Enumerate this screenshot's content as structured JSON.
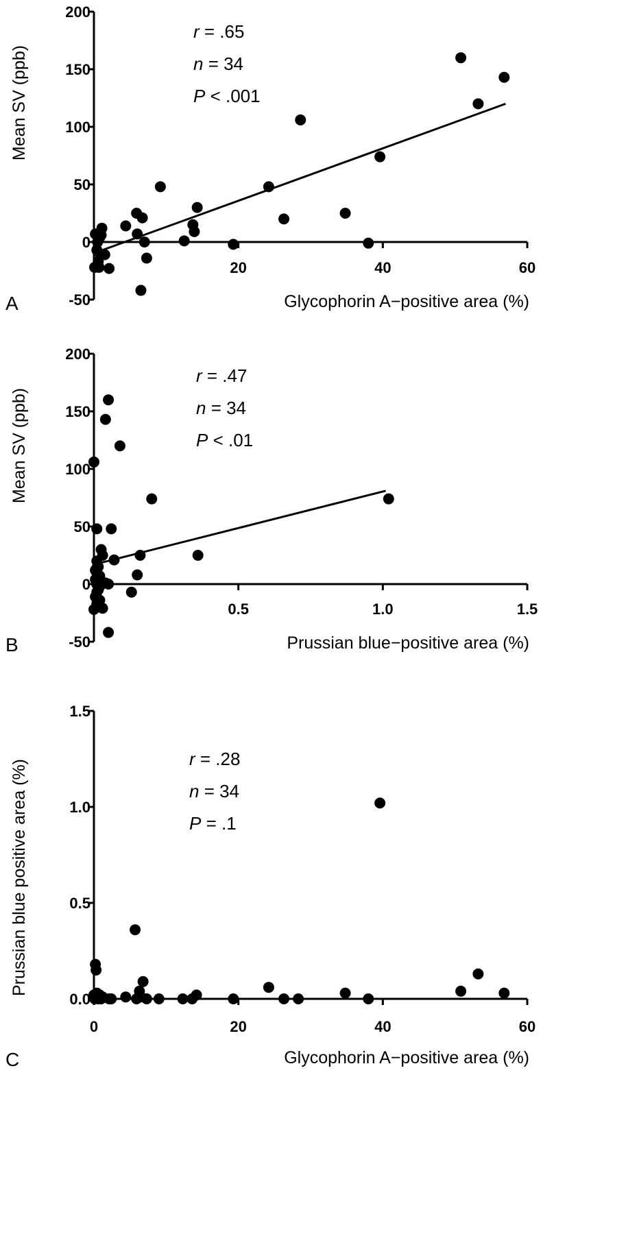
{
  "chart_data": [
    {
      "type": "scatter",
      "panel_label": "A",
      "xlabel": "Glycophorin A−positive area (%)",
      "ylabel": "Mean SV (ppb)",
      "xlim": [
        0,
        60
      ],
      "ylim": [
        -50,
        200
      ],
      "xticks": [
        20,
        40,
        60
      ],
      "xtick_labels": [
        "20",
        "40",
        "60"
      ],
      "yticks": [
        -50,
        0,
        50,
        100,
        150,
        200
      ],
      "ytick_labels": [
        "-50",
        "0",
        "50",
        "100",
        "150",
        "200"
      ],
      "stats": [
        {
          "sym": "r",
          "rest": " = .65"
        },
        {
          "sym": "n",
          "rest": " = 34"
        },
        {
          "sym": "P",
          "rest": " < .001"
        }
      ],
      "fit_line": {
        "x": [
          0.3,
          57
        ],
        "y": [
          -9,
          120
        ]
      },
      "x": [
        0.1,
        0.2,
        0.4,
        0.5,
        0.6,
        0.7,
        0.8,
        1.0,
        1.1,
        2.1,
        4.4,
        5.9,
        6.0,
        6.5,
        6.7,
        7.0,
        7.3,
        9.2,
        12.5,
        13.7,
        13.9,
        14.3,
        19.3,
        24.2,
        26.3,
        28.6,
        34.8,
        38.0,
        39.6,
        50.8,
        53.2,
        56.8,
        1.5,
        0.9
      ],
      "y": [
        -22,
        7,
        -7,
        0,
        -17,
        -22,
        4,
        6,
        12,
        -23,
        14,
        25,
        7,
        -42,
        21,
        0,
        -14,
        48,
        1,
        15,
        9,
        30,
        -2,
        48,
        20,
        106,
        25,
        -1,
        74,
        160,
        120,
        143,
        -11,
        -11
      ]
    },
    {
      "type": "scatter",
      "panel_label": "B",
      "xlabel": "Prussian blue−positive area (%)",
      "ylabel": "Mean SV (ppb)",
      "xlim": [
        0,
        1.5
      ],
      "ylim": [
        -50,
        200
      ],
      "xticks": [
        0.5,
        1.0,
        1.5
      ],
      "xtick_labels": [
        "0.5",
        "1.0",
        "1.5"
      ],
      "yticks": [
        -50,
        0,
        50,
        100,
        150,
        200
      ],
      "ytick_labels": [
        "-50",
        "0",
        "50",
        "100",
        "150",
        "200"
      ],
      "stats": [
        {
          "sym": "r",
          "rest": " = .47"
        },
        {
          "sym": "n",
          "rest": " = 34"
        },
        {
          "sym": "P",
          "rest": " < .01"
        }
      ],
      "fit_line": {
        "x": [
          0.0,
          1.01
        ],
        "y": [
          17,
          81
        ]
      },
      "x": [
        0.0,
        0.0,
        0.005,
        0.005,
        0.005,
        0.01,
        0.01,
        0.01,
        0.01,
        0.01,
        0.01,
        0.01,
        0.015,
        0.015,
        0.02,
        0.02,
        0.02,
        0.025,
        0.03,
        0.03,
        0.04,
        0.05,
        0.05,
        0.05,
        0.06,
        0.07,
        0.09,
        0.13,
        0.15,
        0.16,
        0.2,
        0.36,
        1.02,
        0.04
      ],
      "y": [
        106,
        -22,
        4,
        12,
        -11,
        48,
        0,
        10,
        -7,
        -17,
        20,
        14,
        15,
        -5,
        7,
        -14,
        -2,
        30,
        -21,
        25,
        143,
        160,
        0,
        -42,
        48,
        21,
        120,
        -7,
        8,
        25,
        74,
        25,
        74,
        1
      ]
    },
    {
      "type": "scatter",
      "panel_label": "C",
      "xlabel": "Glycophorin A−positive area (%)",
      "ylabel": "Prussian blue positive area (%)",
      "xlim": [
        0,
        60
      ],
      "ylim": [
        0,
        1.5
      ],
      "xticks": [
        0,
        20,
        40,
        60
      ],
      "xtick_labels": [
        "0",
        "20",
        "40",
        "60"
      ],
      "yticks": [
        0,
        0.5,
        1.0,
        1.5
      ],
      "ytick_labels": [
        "0.0",
        "0.5",
        "1.0",
        "1.5"
      ],
      "stats": [
        {
          "sym": "r",
          "rest": " = .28"
        },
        {
          "sym": "n",
          "rest": " = 34"
        },
        {
          "sym": "P",
          "rest": " = .1"
        }
      ],
      "x": [
        0.1,
        0.2,
        0.3,
        0.4,
        0.5,
        0.6,
        0.8,
        1.0,
        1.2,
        2.1,
        4.4,
        5.7,
        5.9,
        6.3,
        6.8,
        7.3,
        9.0,
        12.3,
        13.6,
        14.2,
        19.3,
        24.2,
        26.3,
        28.3,
        34.8,
        38.0,
        39.6,
        50.8,
        53.2,
        56.8,
        0.0,
        6.5,
        2.4,
        0.3
      ],
      "y": [
        0.0,
        0.18,
        0.15,
        0.03,
        0.01,
        0.0,
        0.02,
        0.0,
        0.01,
        0.0,
        0.01,
        0.36,
        0.0,
        0.04,
        0.09,
        0.0,
        0.0,
        0.0,
        0.0,
        0.02,
        0.0,
        0.06,
        0.0,
        0.0,
        0.03,
        0.0,
        1.02,
        0.04,
        0.13,
        0.03,
        0.02,
        0.01,
        0.0,
        0.01
      ]
    }
  ]
}
